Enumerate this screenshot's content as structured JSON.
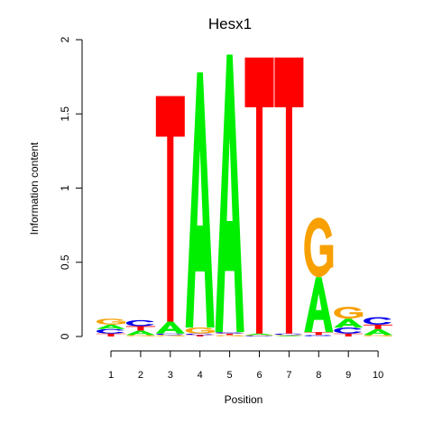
{
  "chart_data": {
    "type": "sequence-logo",
    "title": "Hesx1",
    "xlabel": "Position",
    "ylabel": "Information content",
    "ylim": [
      0,
      2
    ],
    "y_ticks": [
      "0",
      "0.5",
      "1",
      "1.5",
      "2"
    ],
    "y_tick_values": [
      0,
      0.5,
      1,
      1.5,
      2
    ],
    "x_ticks": [
      "1",
      "2",
      "3",
      "4",
      "5",
      "6",
      "7",
      "8",
      "9",
      "10"
    ],
    "colors": {
      "A": "#00ee00",
      "C": "#0000ee",
      "G": "#f7a000",
      "T": "#ff0000"
    },
    "positions": [
      {
        "pos": "1",
        "stack": [
          {
            "letter": "T",
            "value": 0.02
          },
          {
            "letter": "C",
            "value": 0.03
          },
          {
            "letter": "A",
            "value": 0.03
          },
          {
            "letter": "G",
            "value": 0.04
          }
        ]
      },
      {
        "pos": "2",
        "stack": [
          {
            "letter": "G",
            "value": 0.01
          },
          {
            "letter": "A",
            "value": 0.03
          },
          {
            "letter": "T",
            "value": 0.03
          },
          {
            "letter": "C",
            "value": 0.04
          }
        ]
      },
      {
        "pos": "3",
        "stack": [
          {
            "letter": "G",
            "value": 0.01
          },
          {
            "letter": "C",
            "value": 0.01
          },
          {
            "letter": "A",
            "value": 0.08
          },
          {
            "letter": "T",
            "value": 1.52
          }
        ]
      },
      {
        "pos": "4",
        "stack": [
          {
            "letter": "T",
            "value": 0.01
          },
          {
            "letter": "C",
            "value": 0.01
          },
          {
            "letter": "G",
            "value": 0.04
          },
          {
            "letter": "A",
            "value": 1.72
          }
        ]
      },
      {
        "pos": "5",
        "stack": [
          {
            "letter": "G",
            "value": 0.01
          },
          {
            "letter": "T",
            "value": 0.01
          },
          {
            "letter": "C",
            "value": 0.01
          },
          {
            "letter": "A",
            "value": 1.87
          }
        ]
      },
      {
        "pos": "6",
        "stack": [
          {
            "letter": "C",
            "value": 0.005
          },
          {
            "letter": "G",
            "value": 0.005
          },
          {
            "letter": "A",
            "value": 0.01
          },
          {
            "letter": "T",
            "value": 1.86
          }
        ]
      },
      {
        "pos": "7",
        "stack": [
          {
            "letter": "A",
            "value": 0.005
          },
          {
            "letter": "G",
            "value": 0.005
          },
          {
            "letter": "C",
            "value": 0.01
          },
          {
            "letter": "T",
            "value": 1.86
          }
        ]
      },
      {
        "pos": "8",
        "stack": [
          {
            "letter": "C",
            "value": 0.01
          },
          {
            "letter": "T",
            "value": 0.02
          },
          {
            "letter": "A",
            "value": 0.37
          },
          {
            "letter": "G",
            "value": 0.4
          }
        ]
      },
      {
        "pos": "9",
        "stack": [
          {
            "letter": "T",
            "value": 0.02
          },
          {
            "letter": "C",
            "value": 0.04
          },
          {
            "letter": "A",
            "value": 0.06
          },
          {
            "letter": "G",
            "value": 0.08
          }
        ]
      },
      {
        "pos": "10",
        "stack": [
          {
            "letter": "G",
            "value": 0.01
          },
          {
            "letter": "A",
            "value": 0.04
          },
          {
            "letter": "T",
            "value": 0.03
          },
          {
            "letter": "C",
            "value": 0.05
          }
        ]
      }
    ]
  }
}
